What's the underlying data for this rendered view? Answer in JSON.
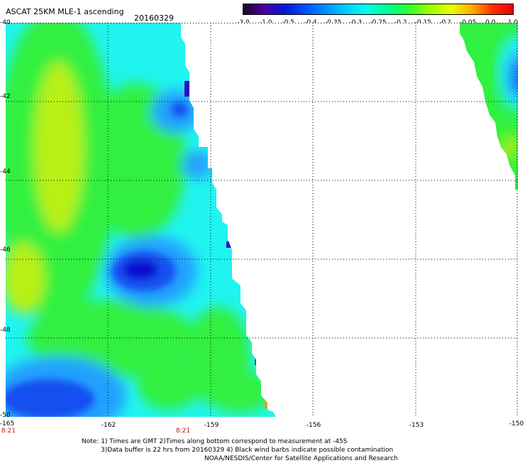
{
  "header": {
    "title": "ASCAT 25KM MLE-1 ascending",
    "date": "20160329"
  },
  "colorbar": {
    "tick_labels": [
      "-3.0",
      "-1.0",
      "-0.5",
      "-0.4",
      "-0.35",
      "-0.3",
      "-0.25",
      "-0.2",
      "-0.15",
      "-0.1",
      "-0.05",
      "0.0",
      "1.0"
    ],
    "colors": [
      "#20002a",
      "#4a00a0",
      "#0018d8",
      "#0050ff",
      "#0090ff",
      "#00d0ff",
      "#00ffe8",
      "#00ff90",
      "#30ff30",
      "#a0ff00",
      "#e8ff00",
      "#ffb000",
      "#ff3000",
      "#e80000"
    ]
  },
  "map": {
    "lat_range": [
      -50,
      -40
    ],
    "lon_range": [
      -165,
      -150
    ],
    "lat_labels": [
      "-40",
      "-42",
      "-44",
      "-46",
      "-48",
      "-50"
    ],
    "lon_labels": [
      "-165",
      "-162",
      "-159",
      "-156",
      "-153",
      "-150"
    ],
    "time_labels": [
      "8:21",
      "8:21"
    ],
    "swath_colors": {
      "green": "#30f040",
      "yellowgreen": "#b8f018",
      "cyan": "#20f4f0",
      "lightblue": "#20a0ff",
      "blue": "#1850f0",
      "darkblue": "#1010d0",
      "purple": "#3a08c0",
      "orange": "#ff9c00"
    }
  },
  "notes": {
    "line1": "Note: 1) Times are GMT 2)Times along bottom correspond to measurement at -45S",
    "line2": "3)Data buffer is 22 hrs from 20160329 4) Black wind barbs indicate possible contamination",
    "line3": "NOAA/NESDIS/Center for Satellite Applications and Research"
  }
}
